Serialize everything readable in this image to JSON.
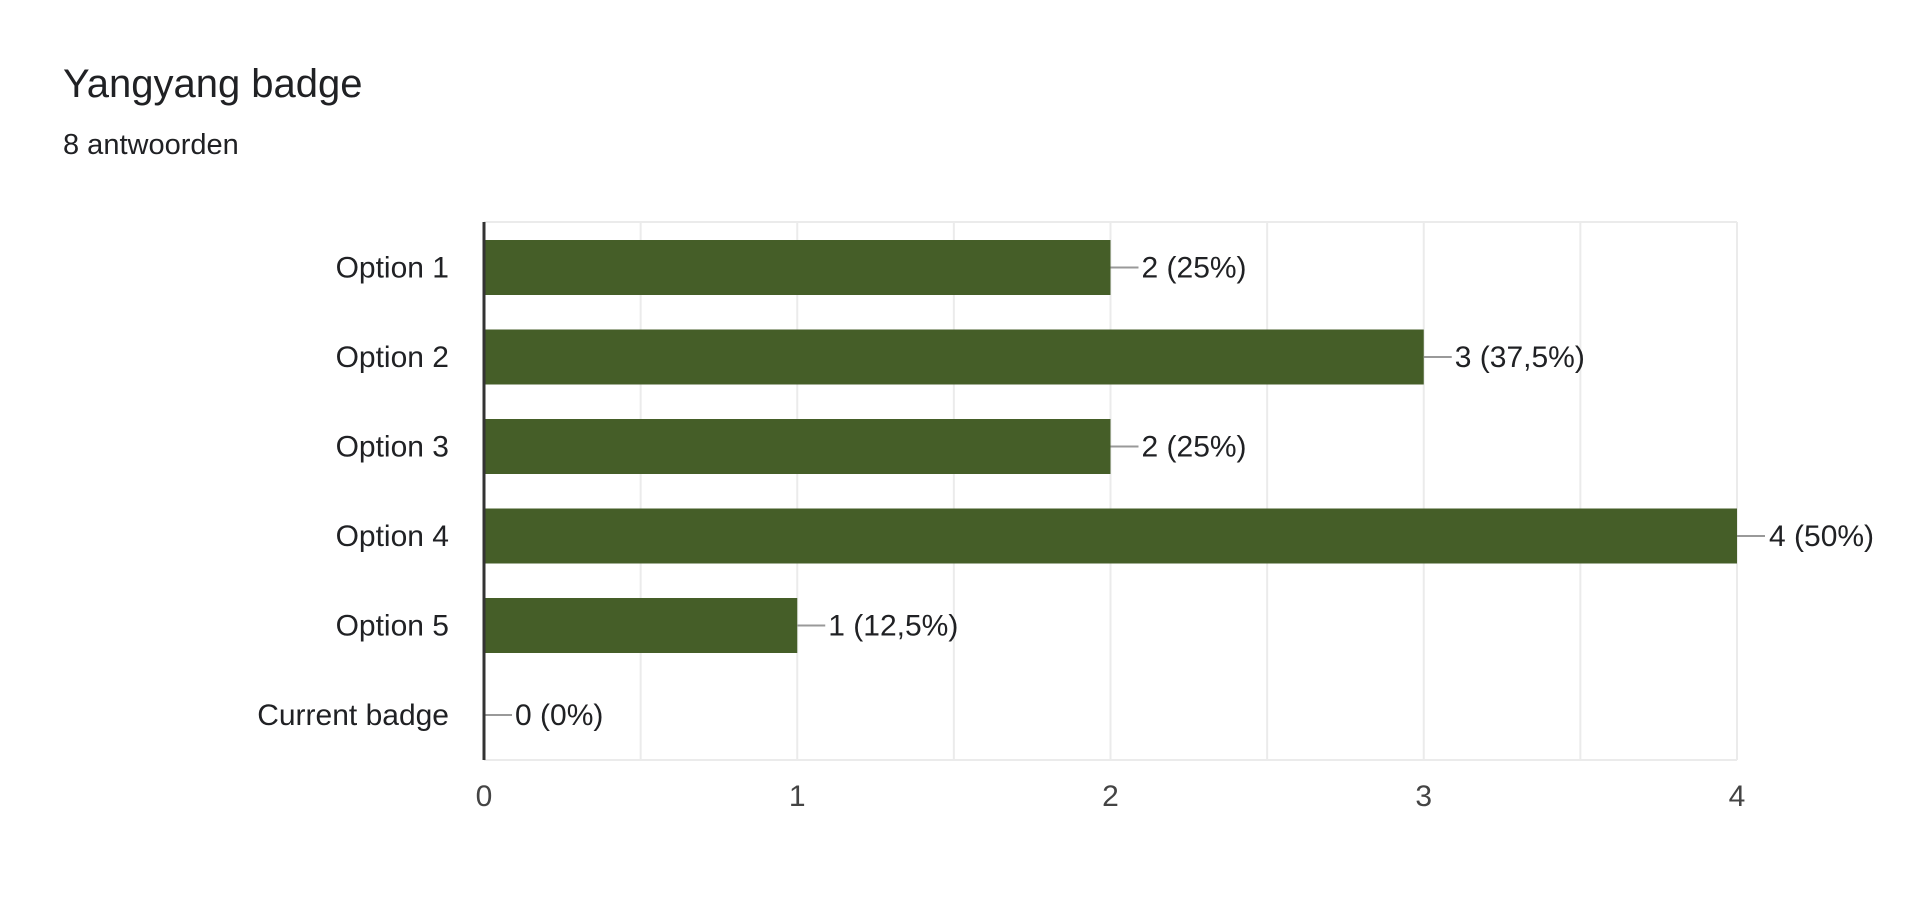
{
  "header": {
    "title": "Yangyang badge",
    "subtitle": "8 antwoorden"
  },
  "colors": {
    "bar": "#455e28",
    "grid": "#ebebeb",
    "axis": "#333333",
    "leader": "#999999"
  },
  "chart_data": {
    "type": "bar",
    "orientation": "horizontal",
    "title": "Yangyang badge",
    "subtitle": "8 antwoorden",
    "categories": [
      "Option 1",
      "Option 2",
      "Option 3",
      "Option 4",
      "Option 5",
      "Current badge"
    ],
    "values": [
      2,
      3,
      2,
      4,
      1,
      0
    ],
    "data_labels": [
      "2 (25%)",
      "3 (37,5%)",
      "2 (25%)",
      "4 (50%)",
      "1 (12,5%)",
      "0 (0%)"
    ],
    "xlim": [
      0,
      4
    ],
    "x_ticks": [
      0,
      1,
      2,
      3,
      4
    ],
    "grid": true,
    "legend": "none"
  }
}
